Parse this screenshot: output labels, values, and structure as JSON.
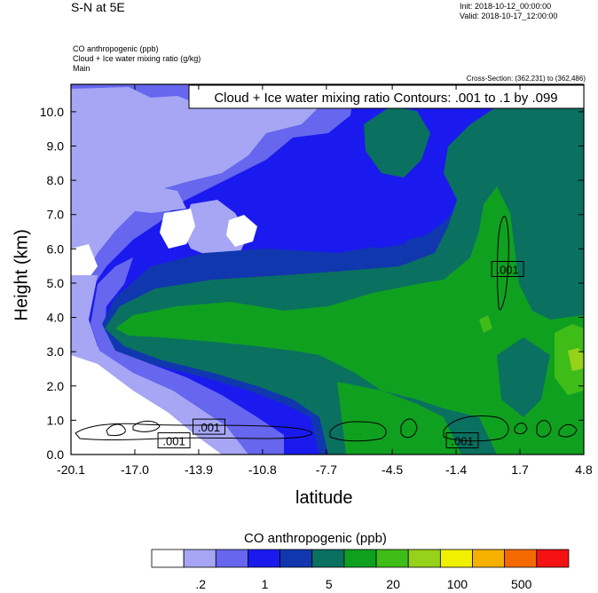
{
  "header": {
    "title": "S-N at 5E",
    "init": "Init: 2018-10-12_00:00:00",
    "valid": "Valid: 2018-10-17_12:00:00",
    "field_lines": [
      "CO anthropogenic   (ppb)",
      "Cloud + Ice water mixing ratio   (g/kg)",
      "Main"
    ],
    "cross_section": "Cross-Section: (362,231) to (362,486)"
  },
  "chart_data": {
    "type": "heatmap",
    "plot_title": "Cloud + Ice water mixing ratio Contours: .001 to .1 by .099",
    "xlabel": "latitude",
    "ylabel": "Height (km)",
    "xlim": [
      -20.1,
      4.8
    ],
    "ylim": [
      0.0,
      10.8
    ],
    "x_ticks": [
      "-20.1",
      "-17.0",
      "-13.9",
      "-10.8",
      "-7.7",
      "-4.5",
      "-1.4",
      "1.7",
      "4.8"
    ],
    "y_ticks": [
      "0.0",
      "1.0",
      "2.0",
      "3.0",
      "4.0",
      "5.0",
      "6.0",
      "7.0",
      "8.0",
      "9.0",
      "10.0"
    ],
    "contour_labels": [
      {
        "text": ".001",
        "lat": 1.1,
        "height": 5.4
      },
      {
        "text": ".001",
        "lat": -15.1,
        "height": 0.4
      },
      {
        "text": ".001",
        "lat": -13.4,
        "height": 0.8
      },
      {
        "text": ".001",
        "lat": -1.1,
        "height": 0.4
      }
    ],
    "colorbar": {
      "title": "CO anthropogenic  (ppb)",
      "colors": [
        "#ffffff",
        "#a6a6f5",
        "#6666ee",
        "#1a1aee",
        "#1037ae",
        "#0a7060",
        "#10a020",
        "#40bc18",
        "#96d21a",
        "#f0f000",
        "#f5b000",
        "#f56a00",
        "#f51212"
      ],
      "tick_labels": [
        ".2",
        "1",
        "5",
        "20",
        "100",
        "500"
      ]
    }
  }
}
